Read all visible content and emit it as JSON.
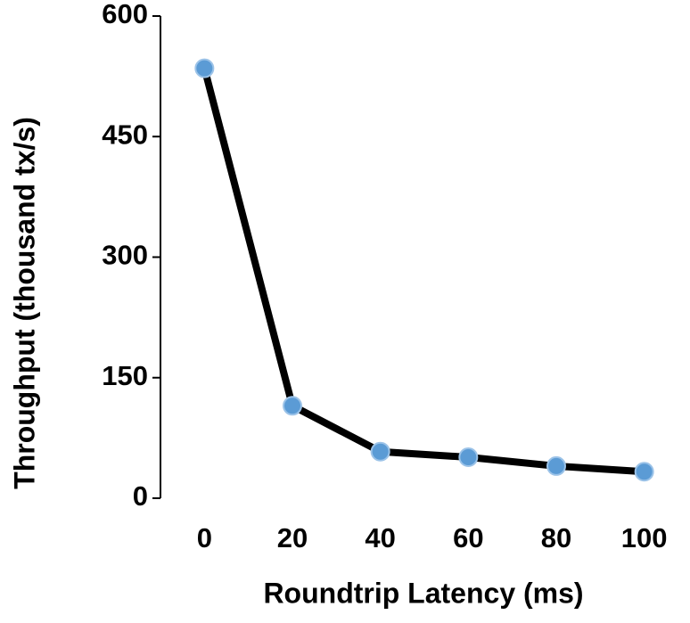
{
  "chart_data": {
    "type": "line",
    "x_label": "Roundtrip Latency (ms)",
    "y_label": "Throughput (thousand tx/s)",
    "x": [
      0,
      20,
      40,
      60,
      80,
      100
    ],
    "series": [
      {
        "values": [
          535,
          115,
          58,
          51,
          40,
          33
        ],
        "color": "#000000",
        "marker_color": "#5b9bd5"
      }
    ],
    "xlim": [
      -10,
      110
    ],
    "xticks": [
      0,
      20,
      40,
      60,
      80,
      100
    ],
    "ylim": [
      0,
      600
    ],
    "yticks": [
      0,
      150,
      300,
      450,
      600
    ]
  }
}
